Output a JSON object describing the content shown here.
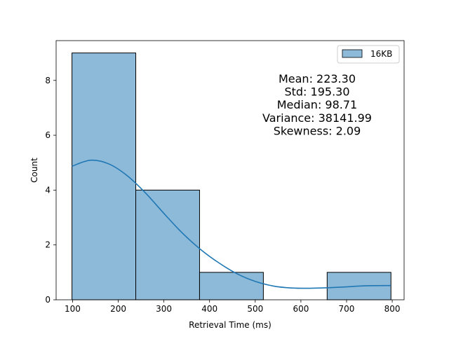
{
  "chart_data": {
    "type": "bar",
    "subtype": "histogram",
    "title": "",
    "xlabel": "Retrieval Time (ms)",
    "ylabel": "Count",
    "xlim": [
      64,
      826
    ],
    "ylim": [
      0,
      9.45
    ],
    "xticks": [
      100,
      200,
      300,
      400,
      500,
      600,
      700,
      800
    ],
    "yticks": [
      0,
      2,
      4,
      6,
      8
    ],
    "bins": [
      {
        "x0": 98.71,
        "x1": 238.4,
        "count": 9
      },
      {
        "x0": 238.4,
        "x1": 378.1,
        "count": 4
      },
      {
        "x0": 378.1,
        "x1": 517.8,
        "count": 1
      },
      {
        "x0": 517.8,
        "x1": 657.5,
        "count": 0
      },
      {
        "x0": 657.5,
        "x1": 797.2,
        "count": 1
      }
    ],
    "kde": {
      "x": [
        98.71,
        140,
        180,
        220,
        260,
        300,
        340,
        380,
        420,
        460,
        500,
        540,
        580,
        620,
        660,
        700,
        740,
        797
      ],
      "y": [
        4.87,
        5.09,
        4.95,
        4.52,
        3.89,
        3.15,
        2.44,
        1.84,
        1.35,
        0.95,
        0.67,
        0.5,
        0.43,
        0.42,
        0.44,
        0.47,
        0.51,
        0.52
      ]
    },
    "series": [
      {
        "name": "16KB",
        "color": "#1f77b4",
        "fill": "#8ebad9"
      }
    ],
    "legend": {
      "position": "top-right"
    },
    "grid": false,
    "annotations": [
      "Mean: 223.30",
      "Std: 195.30",
      "Median: 98.71",
      "Variance: 38141.99",
      "Skewness: 2.09"
    ]
  }
}
